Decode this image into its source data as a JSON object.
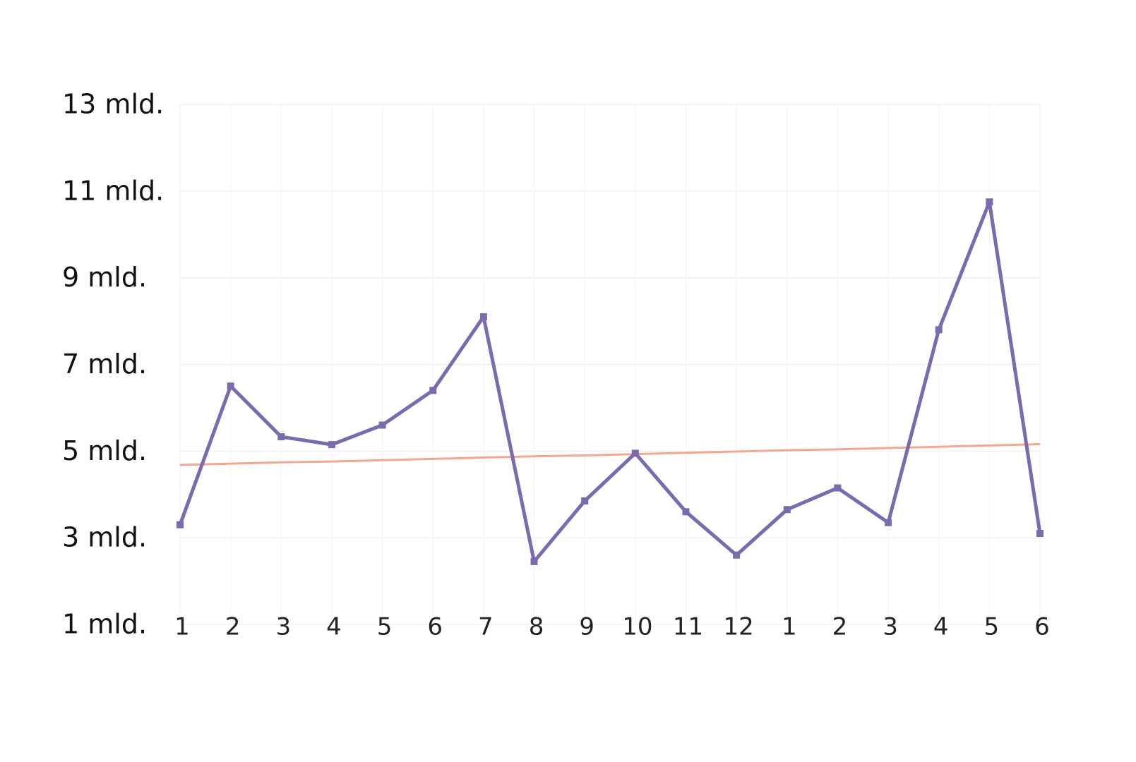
{
  "chart_data": {
    "type": "line",
    "categories": [
      "1",
      "2",
      "3",
      "4",
      "5",
      "6",
      "7",
      "8",
      "9",
      "10",
      "11",
      "12",
      "1",
      "2",
      "3",
      "4",
      "5",
      "6"
    ],
    "values": [
      3.3,
      6.5,
      5.33,
      5.15,
      5.6,
      6.4,
      8.1,
      2.45,
      3.85,
      4.95,
      3.6,
      2.6,
      3.65,
      4.15,
      3.35,
      7.8,
      10.75,
      3.1
    ],
    "color": "#7a6aae",
    "trend": {
      "color": "#f4a78f",
      "values": [
        4.68,
        4.71,
        4.74,
        4.76,
        4.79,
        4.82,
        4.85,
        4.88,
        4.9,
        4.93,
        4.96,
        4.99,
        5.02,
        5.04,
        5.07,
        5.1,
        5.13,
        5.16
      ]
    },
    "ylim": [
      1,
      13
    ],
    "yticks": [
      {
        "value": 1,
        "label": "1 mld."
      },
      {
        "value": 3,
        "label": "3 mld."
      },
      {
        "value": 5,
        "label": "5 mld."
      },
      {
        "value": 7,
        "label": "7 mld."
      },
      {
        "value": 9,
        "label": "9 mld."
      },
      {
        "value": 11,
        "label": "11 mld."
      },
      {
        "value": 13,
        "label": "13 mld."
      }
    ],
    "grid": true
  }
}
